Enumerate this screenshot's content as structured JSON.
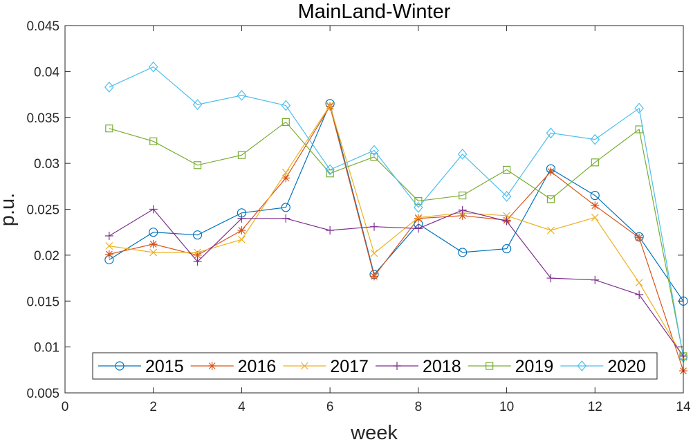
{
  "chart_data": {
    "type": "line",
    "title": "MainLand-Winter",
    "xlabel": "week",
    "ylabel": "p.u.",
    "xlim": [
      0,
      14
    ],
    "ylim": [
      0.005,
      0.045
    ],
    "x_ticks": [
      "0",
      "2",
      "4",
      "6",
      "8",
      "10",
      "12",
      "14"
    ],
    "y_ticks": [
      "0.005",
      "0.01",
      "0.015",
      "0.02",
      "0.025",
      "0.03",
      "0.035",
      "0.04",
      "0.045"
    ],
    "grid": false,
    "legend_position": "bottom",
    "x": [
      1,
      2,
      3,
      4,
      5,
      6,
      7,
      8,
      9,
      10,
      11,
      12,
      13,
      14
    ],
    "series": [
      {
        "name": "2015",
        "color": "#0072BD",
        "marker": "circle",
        "values": [
          0.0195,
          0.0225,
          0.0222,
          0.0246,
          0.0252,
          0.0365,
          0.0179,
          0.0234,
          0.0203,
          0.0207,
          0.0294,
          0.0265,
          0.022,
          0.015
        ]
      },
      {
        "name": "2016",
        "color": "#D95319",
        "marker": "asterisk",
        "values": [
          0.0201,
          0.0212,
          0.02,
          0.0227,
          0.0284,
          0.0362,
          0.0177,
          0.024,
          0.0243,
          0.0238,
          0.0291,
          0.0254,
          0.0219,
          0.0074
        ]
      },
      {
        "name": "2017",
        "color": "#EDB120",
        "marker": "x",
        "values": [
          0.021,
          0.0203,
          0.0203,
          0.0217,
          0.029,
          0.0363,
          0.0202,
          0.0241,
          0.0246,
          0.0243,
          0.0227,
          0.0241,
          0.017,
          0.0089
        ]
      },
      {
        "name": "2018",
        "color": "#7E2F8E",
        "marker": "plus",
        "values": [
          0.0221,
          0.025,
          0.0193,
          0.024,
          0.024,
          0.0227,
          0.0231,
          0.0229,
          0.0249,
          0.0237,
          0.0175,
          0.0173,
          0.0157,
          0.009
        ]
      },
      {
        "name": "2019",
        "color": "#77AC30",
        "marker": "square",
        "values": [
          0.0338,
          0.0324,
          0.0298,
          0.0309,
          0.0345,
          0.0289,
          0.0307,
          0.0259,
          0.0265,
          0.0293,
          0.0261,
          0.0301,
          0.0337,
          0.009
        ]
      },
      {
        "name": "2020",
        "color": "#4DBEEE",
        "marker": "diamond",
        "values": [
          0.0383,
          0.0405,
          0.0364,
          0.0374,
          0.0363,
          0.0293,
          0.0314,
          0.0252,
          0.031,
          0.0264,
          0.0333,
          0.0326,
          0.036,
          0.0089
        ]
      }
    ]
  }
}
